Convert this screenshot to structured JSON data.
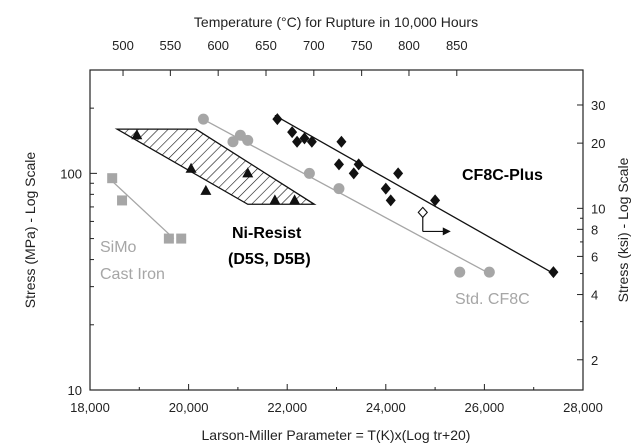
{
  "chart_data": {
    "type": "scatter",
    "title": "Temperature (°C) for Rupture in 10,000 Hours",
    "xlabel": "Larson-Miller Parameter  = T(K)x(Log tr+20)",
    "ylabel_left": "Stress (MPa) - Log Scale",
    "ylabel_right": "Stress (ksi) - Log Scale",
    "x_range": [
      18000,
      28000
    ],
    "y_range_mpa": [
      10,
      300
    ],
    "y_scale": "log",
    "grid": false,
    "x_ticks": [
      "18,000",
      "20,000",
      "22,000",
      "24,000",
      "26,000",
      "28,000"
    ],
    "y_ticks_left": [
      "10",
      "100"
    ],
    "y_ticks_left_values": [
      10,
      100
    ],
    "y_ticks_right": [
      "2",
      "4",
      "6",
      "8",
      "10",
      "20",
      "30"
    ],
    "y_ticks_right_values_ksi": [
      2,
      4,
      6,
      8,
      10,
      20,
      30
    ],
    "top_ticks": [
      "500",
      "550",
      "600",
      "650",
      "700",
      "750",
      "800",
      "850"
    ],
    "top_ticks_lmp": [
      18670,
      19630,
      20600,
      21570,
      22540,
      23510,
      24470,
      25440
    ],
    "series": [
      {
        "name": "SiMo Cast Iron",
        "marker": "square",
        "color": "#a6a6a6",
        "points": [
          [
            18450,
            95
          ],
          [
            18650,
            75
          ],
          [
            19600,
            50
          ],
          [
            19850,
            50
          ]
        ],
        "trend": [
          [
            18450,
            92
          ],
          [
            19700,
            50
          ]
        ]
      },
      {
        "name": "Ni-Resist (D5S, D5B)",
        "marker": "triangle",
        "color": "#111111",
        "points": [
          [
            18950,
            150
          ],
          [
            20050,
            105
          ],
          [
            20350,
            83
          ],
          [
            21200,
            100
          ],
          [
            21750,
            75
          ],
          [
            22150,
            75
          ]
        ],
        "band": [
          [
            18550,
            160
          ],
          [
            20150,
            160
          ],
          [
            22550,
            72
          ],
          [
            21200,
            72
          ]
        ]
      },
      {
        "name": "Std. CF8C",
        "marker": "circle",
        "color": "#a6a6a6",
        "points": [
          [
            20300,
            178
          ],
          [
            20900,
            140
          ],
          [
            21050,
            150
          ],
          [
            21200,
            142
          ],
          [
            22450,
            100
          ],
          [
            23050,
            85
          ],
          [
            25500,
            35
          ],
          [
            26100,
            35
          ]
        ],
        "trend": [
          [
            20250,
            180
          ],
          [
            26150,
            34
          ]
        ]
      },
      {
        "name": "CF8C-Plus",
        "marker": "diamond",
        "color": "#111111",
        "points": [
          [
            21800,
            178
          ],
          [
            22100,
            155
          ],
          [
            22200,
            140
          ],
          [
            22350,
            145
          ],
          [
            22500,
            140
          ],
          [
            23050,
            110
          ],
          [
            23100,
            140
          ],
          [
            23350,
            100
          ],
          [
            23450,
            110
          ],
          [
            24000,
            85
          ],
          [
            24100,
            75
          ],
          [
            24250,
            100
          ],
          [
            25000,
            75
          ],
          [
            27400,
            35
          ]
        ],
        "trend": [
          [
            21750,
            185
          ],
          [
            27450,
            34
          ]
        ]
      }
    ],
    "annotations": {
      "cf8c_plus": "CF8C-Plus",
      "ni_resist_line1": "Ni-Resist",
      "ni_resist_line2": "(D5S, D5B)",
      "simo_line1": "SiMo",
      "simo_line2": "Cast Iron",
      "std_cf8c": "Std. CF8C"
    },
    "runout_marker": {
      "x": 24750,
      "y": 60
    }
  }
}
